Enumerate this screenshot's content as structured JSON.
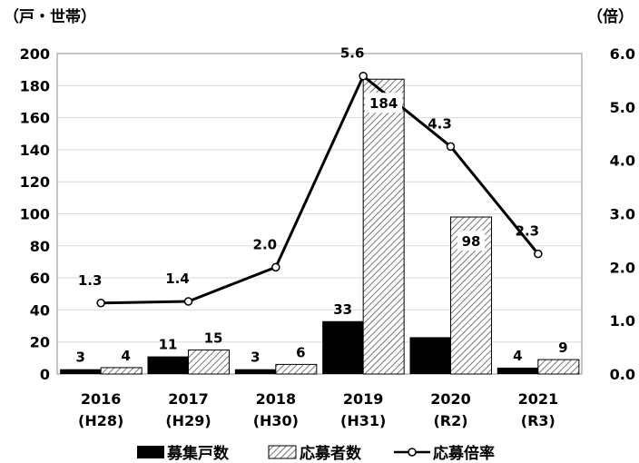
{
  "chart_data": {
    "type": "bar",
    "left_axis_unit": "（戸・世帯）",
    "right_axis_unit": "（倍）",
    "categories": [
      [
        "2016",
        "(H28)"
      ],
      [
        "2017",
        "(H29)"
      ],
      [
        "2018",
        "(H30)"
      ],
      [
        "2019",
        "(H31)"
      ],
      [
        "2020",
        "(R2)"
      ],
      [
        "2021",
        "(R3)"
      ]
    ],
    "series": [
      {
        "name": "募集戸数",
        "type": "bar",
        "axis": "left",
        "color": "#000000",
        "values": [
          3,
          11,
          3,
          33,
          23,
          4
        ],
        "labels": [
          "3",
          "11",
          "3",
          "33",
          "",
          "4"
        ]
      },
      {
        "name": "応募者数",
        "type": "bar",
        "axis": "left",
        "pattern": "hatched",
        "values": [
          4,
          15,
          6,
          184,
          98,
          9
        ],
        "labels": [
          "4",
          "15",
          "6",
          "184",
          "98",
          "9"
        ]
      },
      {
        "name": "応募倍率",
        "type": "line",
        "axis": "right",
        "color": "#000000",
        "values": [
          1.33,
          1.36,
          2.0,
          5.58,
          4.26,
          2.25
        ],
        "labels": [
          "1.3",
          "1.4",
          "2.0",
          "5.6",
          "4.3",
          "2.3"
        ]
      }
    ],
    "y_left": {
      "min": 0,
      "max": 200,
      "ticks": [
        "0",
        "20",
        "40",
        "60",
        "80",
        "100",
        "120",
        "140",
        "160",
        "180",
        "200"
      ]
    },
    "y_right": {
      "min": 0,
      "max": 6,
      "ticks": [
        "0.0",
        "1.0",
        "2.0",
        "3.0",
        "4.0",
        "5.0",
        "6.0"
      ]
    },
    "grid": true,
    "legend_position": "bottom"
  }
}
